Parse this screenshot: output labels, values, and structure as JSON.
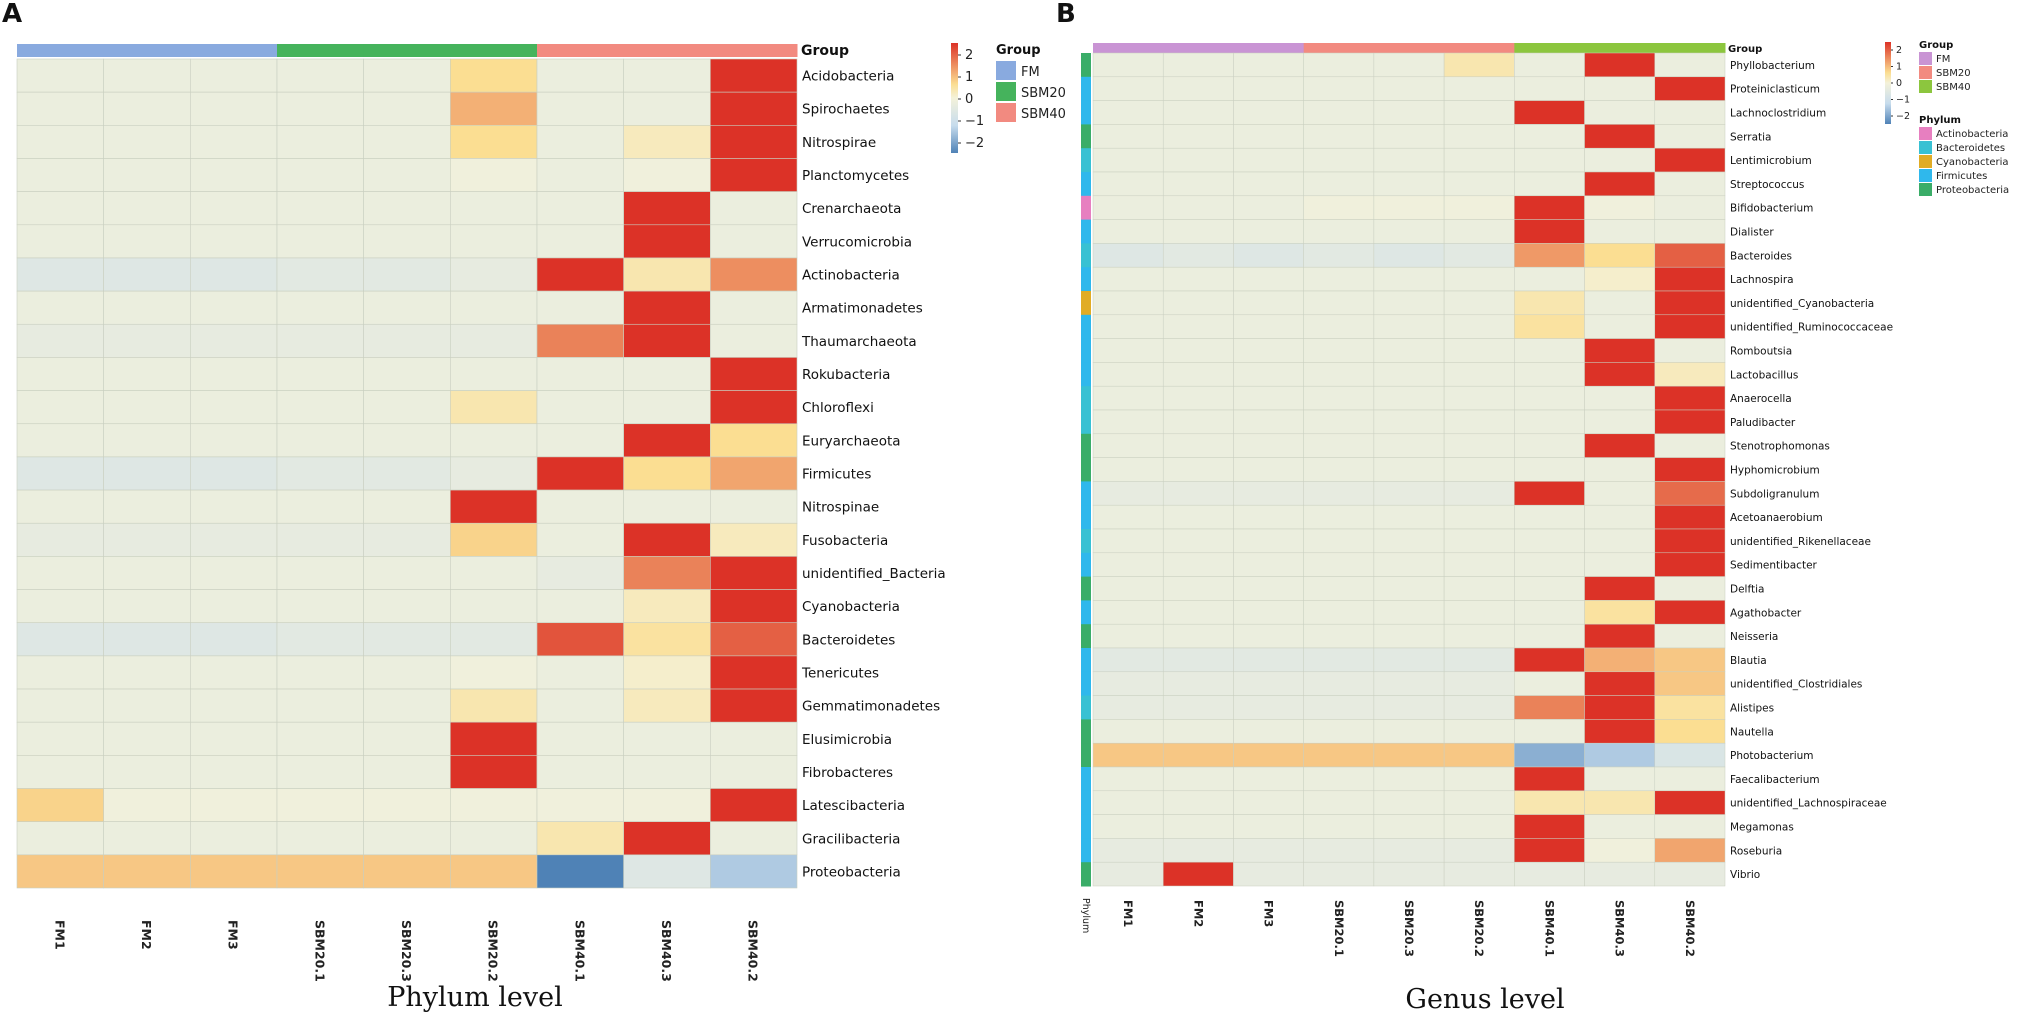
{
  "chart_data": [
    {
      "panel": "A",
      "type": "heatmap",
      "title": "",
      "caption": "Phylum level",
      "columns": [
        "FM1",
        "FM2",
        "FM3",
        "SBM20.1",
        "SBM20.3",
        "SBM20.2",
        "SBM40.1",
        "SBM40.3",
        "SBM40.2"
      ],
      "column_groups": [
        "FM",
        "FM",
        "FM",
        "SBM20",
        "SBM20",
        "SBM20",
        "SBM40",
        "SBM40",
        "SBM40"
      ],
      "rows": [
        "Acidobacteria",
        "Spirochaetes",
        "Nitrospirae",
        "Planctomycetes",
        "Crenarchaeota",
        "Verrucomicrobia",
        "Actinobacteria",
        "Armatimonadetes",
        "Thaumarchaeota",
        "Rokubacteria",
        "Chloroflexi",
        "Euryarchaeota",
        "Firmicutes",
        "Nitrospinae",
        "Fusobacteria",
        "unidentified_Bacteria",
        "Cyanobacteria",
        "Bacteroidetes",
        "Tenericutes",
        "Gemmatimonadetes",
        "Elusimicrobia",
        "Fibrobacteres",
        "Latescibacteria",
        "Gracilibacteria",
        "Proteobacteria"
      ],
      "values": [
        [
          -0.2,
          -0.2,
          -0.2,
          -0.2,
          -0.2,
          0.5,
          -0.2,
          -0.2,
          2.7
        ],
        [
          -0.2,
          -0.2,
          -0.2,
          -0.2,
          -0.2,
          0.9,
          -0.2,
          -0.2,
          2.4
        ],
        [
          -0.2,
          -0.2,
          -0.2,
          -0.2,
          -0.2,
          0.5,
          -0.2,
          0.2,
          2.6
        ],
        [
          -0.2,
          -0.2,
          -0.2,
          -0.2,
          -0.2,
          -0.1,
          -0.2,
          -0.1,
          2.7
        ],
        [
          -0.2,
          -0.2,
          -0.2,
          -0.2,
          -0.2,
          -0.2,
          -0.2,
          2.7,
          -0.2
        ],
        [
          -0.2,
          -0.2,
          -0.2,
          -0.2,
          -0.2,
          -0.2,
          -0.2,
          2.7,
          -0.2
        ],
        [
          -0.5,
          -0.5,
          -0.5,
          -0.4,
          -0.4,
          -0.3,
          2.2,
          0.3,
          1.2
        ],
        [
          -0.2,
          -0.2,
          -0.2,
          -0.2,
          -0.2,
          -0.2,
          -0.2,
          2.7,
          -0.2
        ],
        [
          -0.3,
          -0.3,
          -0.3,
          -0.3,
          -0.3,
          -0.3,
          1.3,
          2.0,
          -0.2
        ],
        [
          -0.2,
          -0.2,
          -0.2,
          -0.2,
          -0.2,
          -0.2,
          -0.2,
          -0.2,
          2.7
        ],
        [
          -0.2,
          -0.2,
          -0.2,
          -0.2,
          -0.2,
          0.3,
          -0.2,
          -0.2,
          2.7
        ],
        [
          -0.2,
          -0.2,
          -0.2,
          -0.2,
          -0.2,
          -0.2,
          -0.2,
          2.4,
          0.5
        ],
        [
          -0.5,
          -0.5,
          -0.5,
          -0.4,
          -0.4,
          -0.3,
          2.2,
          0.5,
          1.0
        ],
        [
          -0.2,
          -0.2,
          -0.2,
          -0.2,
          -0.2,
          2.7,
          -0.2,
          -0.2,
          -0.2
        ],
        [
          -0.3,
          -0.3,
          -0.3,
          -0.3,
          -0.3,
          0.6,
          -0.2,
          2.3,
          0.2
        ],
        [
          -0.2,
          -0.2,
          -0.2,
          -0.2,
          -0.2,
          -0.2,
          -0.3,
          1.3,
          2.1
        ],
        [
          -0.2,
          -0.2,
          -0.2,
          -0.2,
          -0.2,
          -0.2,
          -0.2,
          0.2,
          2.7
        ],
        [
          -0.5,
          -0.5,
          -0.5,
          -0.4,
          -0.4,
          -0.4,
          1.7,
          0.4,
          1.6
        ],
        [
          -0.2,
          -0.2,
          -0.2,
          -0.2,
          -0.2,
          -0.1,
          -0.2,
          0.1,
          2.7
        ],
        [
          -0.2,
          -0.2,
          -0.2,
          -0.2,
          -0.2,
          0.3,
          -0.2,
          0.2,
          2.7
        ],
        [
          -0.2,
          -0.2,
          -0.2,
          -0.2,
          -0.2,
          2.7,
          -0.2,
          -0.2,
          -0.2
        ],
        [
          -0.2,
          -0.2,
          -0.2,
          -0.2,
          -0.2,
          2.7,
          -0.2,
          -0.2,
          -0.2
        ],
        [
          0.6,
          -0.1,
          -0.1,
          -0.1,
          -0.1,
          -0.1,
          -0.1,
          -0.1,
          2.6
        ],
        [
          -0.2,
          -0.2,
          -0.2,
          -0.2,
          -0.2,
          -0.2,
          0.3,
          2.6,
          -0.2
        ],
        [
          0.7,
          0.7,
          0.7,
          0.7,
          0.7,
          0.7,
          -2.3,
          -0.5,
          -1.2
        ]
      ],
      "color_scale": {
        "min": -2,
        "max": 2,
        "ticks": [
          2,
          1,
          0,
          -1,
          -2
        ],
        "tick_labels": [
          "2",
          "1",
          "0",
          "−1",
          "−2"
        ]
      },
      "group_legend_title": "Group",
      "groups": [
        {
          "name": "FM",
          "color": "#89aadf"
        },
        {
          "name": "SBM20",
          "color": "#45b35c"
        },
        {
          "name": "SBM40",
          "color": "#f28a80"
        }
      ],
      "group_bar_label": "Group"
    },
    {
      "panel": "B",
      "type": "heatmap",
      "title": "",
      "caption": "Genus level",
      "columns": [
        "FM1",
        "FM2",
        "FM3",
        "SBM20.1",
        "SBM20.3",
        "SBM20.2",
        "SBM40.1",
        "SBM40.3",
        "SBM40.2"
      ],
      "column_groups": [
        "FM",
        "FM",
        "FM",
        "SBM20",
        "SBM20",
        "SBM20",
        "SBM40",
        "SBM40",
        "SBM40"
      ],
      "rows": [
        "Phyllobacterium",
        "Proteiniclasticum",
        "Lachnoclostridium",
        "Serratia",
        "Lentimicrobium",
        "Streptococcus",
        "Bifidobacterium",
        "Dialister",
        "Bacteroides",
        "Lachnospira",
        "unidentified_Cyanobacteria",
        "unidentified_Ruminococcaceae",
        "Romboutsia",
        "Lactobacillus",
        "Anaerocella",
        "Paludibacter",
        "Stenotrophomonas",
        "Hyphomicrobium",
        "Subdoligranulum",
        "Acetoanaerobium",
        "unidentified_Rikenellaceae",
        "Sedimentibacter",
        "Delftia",
        "Agathobacter",
        "Neisseria",
        "Blautia",
        "unidentified_Clostridiales",
        "Alistipes",
        "Nautella",
        "Photobacterium",
        "Faecalibacterium",
        "unidentified_Lachnospiraceae",
        "Megamonas",
        "Roseburia",
        "Vibrio"
      ],
      "row_phylum": [
        "Proteobacteria",
        "Firmicutes",
        "Firmicutes",
        "Proteobacteria",
        "Bacteroidetes",
        "Firmicutes",
        "Actinobacteria",
        "Firmicutes",
        "Bacteroidetes",
        "Firmicutes",
        "Cyanobacteria",
        "Firmicutes",
        "Firmicutes",
        "Firmicutes",
        "Bacteroidetes",
        "Bacteroidetes",
        "Proteobacteria",
        "Proteobacteria",
        "Firmicutes",
        "Firmicutes",
        "Bacteroidetes",
        "Firmicutes",
        "Proteobacteria",
        "Firmicutes",
        "Proteobacteria",
        "Firmicutes",
        "Firmicutes",
        "Bacteroidetes",
        "Proteobacteria",
        "Proteobacteria",
        "Firmicutes",
        "Firmicutes",
        "Firmicutes",
        "Firmicutes",
        "Proteobacteria"
      ],
      "values": [
        [
          -0.2,
          -0.2,
          -0.2,
          -0.2,
          -0.2,
          0.3,
          -0.2,
          2.7,
          -0.2
        ],
        [
          -0.2,
          -0.2,
          -0.2,
          -0.2,
          -0.2,
          -0.2,
          -0.2,
          -0.2,
          2.7
        ],
        [
          -0.2,
          -0.2,
          -0.2,
          -0.2,
          -0.2,
          -0.2,
          2.7,
          -0.2,
          -0.2
        ],
        [
          -0.2,
          -0.2,
          -0.2,
          -0.2,
          -0.2,
          -0.2,
          -0.2,
          2.7,
          -0.2
        ],
        [
          -0.2,
          -0.2,
          -0.2,
          -0.2,
          -0.2,
          -0.2,
          -0.2,
          -0.2,
          2.7
        ],
        [
          -0.2,
          -0.2,
          -0.2,
          -0.2,
          -0.2,
          -0.2,
          -0.2,
          2.7,
          -0.2
        ],
        [
          -0.2,
          -0.2,
          -0.2,
          -0.1,
          -0.1,
          -0.1,
          2.7,
          -0.1,
          -0.2
        ],
        [
          -0.2,
          -0.2,
          -0.2,
          -0.2,
          -0.2,
          -0.2,
          2.7,
          -0.2,
          -0.2
        ],
        [
          -0.5,
          -0.4,
          -0.5,
          -0.4,
          -0.5,
          -0.4,
          1.1,
          0.5,
          1.6
        ],
        [
          -0.2,
          -0.2,
          -0.2,
          -0.2,
          -0.2,
          -0.2,
          -0.2,
          0.1,
          2.7
        ],
        [
          -0.2,
          -0.2,
          -0.2,
          -0.2,
          -0.2,
          -0.2,
          0.3,
          -0.2,
          2.7
        ],
        [
          -0.2,
          -0.2,
          -0.2,
          -0.2,
          -0.2,
          -0.2,
          0.4,
          -0.2,
          2.6
        ],
        [
          -0.2,
          -0.2,
          -0.2,
          -0.2,
          -0.2,
          -0.2,
          -0.2,
          2.7,
          -0.2
        ],
        [
          -0.2,
          -0.2,
          -0.2,
          -0.2,
          -0.2,
          -0.2,
          -0.2,
          2.7,
          0.2
        ],
        [
          -0.2,
          -0.2,
          -0.2,
          -0.2,
          -0.2,
          -0.2,
          -0.2,
          -0.2,
          2.7
        ],
        [
          -0.2,
          -0.2,
          -0.2,
          -0.2,
          -0.2,
          -0.2,
          -0.2,
          -0.2,
          2.7
        ],
        [
          -0.2,
          -0.2,
          -0.2,
          -0.2,
          -0.2,
          -0.2,
          -0.2,
          2.7,
          -0.2
        ],
        [
          -0.2,
          -0.2,
          -0.2,
          -0.2,
          -0.2,
          -0.2,
          -0.2,
          -0.2,
          2.7
        ],
        [
          -0.3,
          -0.3,
          -0.3,
          -0.3,
          -0.3,
          -0.3,
          2.0,
          -0.2,
          1.5
        ],
        [
          -0.2,
          -0.2,
          -0.2,
          -0.2,
          -0.2,
          -0.2,
          -0.2,
          -0.2,
          2.7
        ],
        [
          -0.2,
          -0.2,
          -0.2,
          -0.2,
          -0.2,
          -0.2,
          -0.2,
          -0.2,
          2.7
        ],
        [
          -0.2,
          -0.2,
          -0.2,
          -0.2,
          -0.2,
          -0.2,
          -0.2,
          -0.2,
          2.7
        ],
        [
          -0.2,
          -0.2,
          -0.2,
          -0.2,
          -0.2,
          -0.2,
          -0.2,
          2.7,
          -0.2
        ],
        [
          -0.2,
          -0.2,
          -0.2,
          -0.2,
          -0.2,
          -0.2,
          -0.2,
          0.4,
          2.6
        ],
        [
          -0.2,
          -0.2,
          -0.2,
          -0.2,
          -0.2,
          -0.2,
          -0.2,
          2.7,
          -0.2
        ],
        [
          -0.4,
          -0.4,
          -0.4,
          -0.4,
          -0.4,
          -0.4,
          2.2,
          0.9,
          0.7
        ],
        [
          -0.3,
          -0.3,
          -0.3,
          -0.3,
          -0.3,
          -0.3,
          -0.2,
          2.5,
          0.7
        ],
        [
          -0.3,
          -0.3,
          -0.3,
          -0.3,
          -0.3,
          -0.3,
          1.3,
          2.3,
          0.4
        ],
        [
          -0.2,
          -0.2,
          -0.2,
          -0.2,
          -0.2,
          -0.2,
          -0.2,
          2.7,
          0.5
        ],
        [
          0.7,
          0.7,
          0.7,
          0.7,
          0.7,
          0.7,
          -1.5,
          -1.2,
          -0.6
        ],
        [
          -0.2,
          -0.2,
          -0.2,
          -0.2,
          -0.2,
          -0.2,
          2.7,
          -0.2,
          -0.2
        ],
        [
          -0.2,
          -0.2,
          -0.2,
          -0.2,
          -0.2,
          -0.2,
          0.3,
          0.3,
          2.4
        ],
        [
          -0.2,
          -0.2,
          -0.2,
          -0.2,
          -0.2,
          -0.2,
          2.7,
          -0.2,
          -0.2
        ],
        [
          -0.3,
          -0.3,
          -0.3,
          -0.3,
          -0.3,
          -0.3,
          2.4,
          -0.1,
          1.0
        ],
        [
          -0.3,
          2.6,
          -0.3,
          -0.3,
          -0.3,
          -0.3,
          -0.3,
          -0.3,
          -0.3
        ]
      ],
      "color_scale": {
        "min": -2,
        "max": 2,
        "ticks": [
          2,
          1,
          0,
          -1,
          -2
        ],
        "tick_labels": [
          "2",
          "1",
          "0",
          "−1",
          "−2"
        ]
      },
      "group_legend_title": "Group",
      "groups": [
        {
          "name": "FM",
          "color": "#c994d4"
        },
        {
          "name": "SBM20",
          "color": "#f28a80"
        },
        {
          "name": "SBM40",
          "color": "#8cc63e"
        }
      ],
      "group_bar_label": "Group",
      "phylum_legend_title": "Phylum",
      "phyla": [
        {
          "name": "Actinobacteria",
          "color": "#e77fc0"
        },
        {
          "name": "Bacteroidetes",
          "color": "#38c1d3"
        },
        {
          "name": "Cyanobacteria",
          "color": "#e1ac25"
        },
        {
          "name": "Firmicutes",
          "color": "#2fb8ec"
        },
        {
          "name": "Proteobacteria",
          "color": "#3aad68"
        }
      ],
      "phylum_bar_label": "Phylum"
    }
  ],
  "colors": {
    "low": "#4f82b6",
    "lowmid": "#c7dced",
    "mid": "#f4f2da",
    "highmid": "#fbde92",
    "high": "#dc3227"
  }
}
